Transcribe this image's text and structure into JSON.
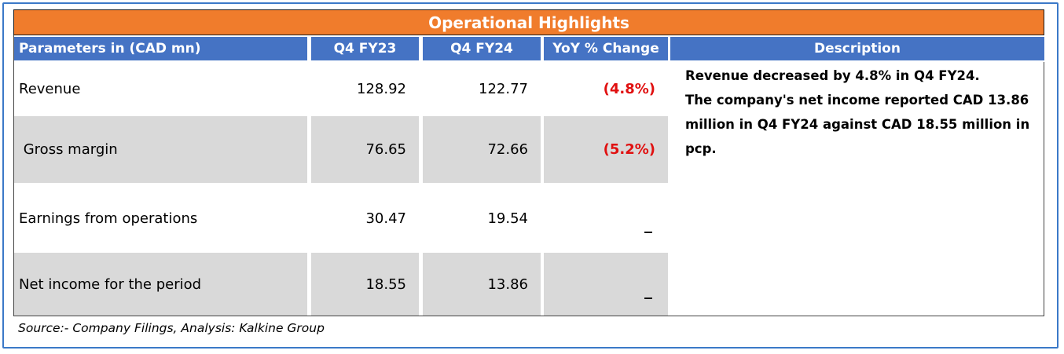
{
  "title": "Operational Highlights",
  "headers": {
    "parameters": "Parameters in (CAD mn)",
    "q4fy23": "Q4 FY23",
    "q4fy24": "Q4 FY24",
    "yoy": "YoY % Change",
    "description": "Description"
  },
  "rows": [
    {
      "label": "Revenue",
      "q4fy23": "128.92",
      "q4fy24": "122.77",
      "yoy": "(4.8%)"
    },
    {
      "label": " Gross margin",
      "q4fy23": "76.65",
      "q4fy24": "72.66",
      "yoy": "(5.2%)"
    },
    {
      "label": "Earnings from operations",
      "q4fy23": "30.47",
      "q4fy24": "19.54",
      "yoy": "_"
    },
    {
      "label": "Net income for the period",
      "q4fy23": "18.55",
      "q4fy24": "13.86",
      "yoy": "_"
    }
  ],
  "description": {
    "line1": "Revenue decreased  by 4.8% in  Q4 FY24.",
    "line2": "The company's  net income reported CAD 13.86 million in  Q4 FY24  against  CAD 18.55 million in pcp."
  },
  "source": "Source:- Company Filings, Analysis: Kalkine Group",
  "colors": {
    "title_bg": "#f07c2c",
    "header_bg": "#4573c4",
    "row_grey": "#d9d9d9",
    "negative": "#e01010",
    "frame": "#3b79c8"
  }
}
